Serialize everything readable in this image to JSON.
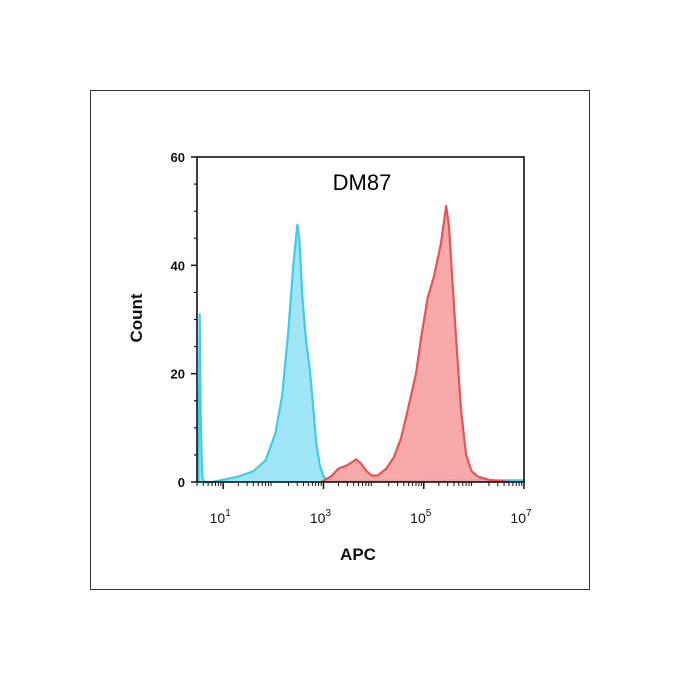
{
  "chart_data": {
    "type": "area",
    "title": "DM87",
    "xlabel": "APC",
    "ylabel": "Count",
    "xscale": "log",
    "xlim": [
      3,
      10000000
    ],
    "ylim": [
      0,
      60
    ],
    "x_ticks": [
      {
        "value": 10,
        "base": "10",
        "exp": "1"
      },
      {
        "value": 1000,
        "base": "10",
        "exp": "3"
      },
      {
        "value": 100000,
        "base": "10",
        "exp": "5"
      },
      {
        "value": 10000000,
        "base": "10",
        "exp": "7"
      }
    ],
    "y_ticks": [
      0,
      20,
      40,
      60
    ],
    "grid": false,
    "legend": "none",
    "series": [
      {
        "color": "#3fcbea",
        "fill": "#8fe1f4",
        "points": [
          [
            3.2,
            0
          ],
          [
            3.4,
            31
          ],
          [
            3.55,
            12
          ],
          [
            3.8,
            1
          ],
          [
            4.2,
            0
          ],
          [
            6,
            0
          ],
          [
            10,
            0.4
          ],
          [
            20,
            1
          ],
          [
            40,
            2
          ],
          [
            70,
            4
          ],
          [
            110,
            9
          ],
          [
            150,
            16
          ],
          [
            200,
            28
          ],
          [
            250,
            40
          ],
          [
            300,
            47.5
          ],
          [
            330,
            45
          ],
          [
            380,
            34
          ],
          [
            450,
            26
          ],
          [
            530,
            21
          ],
          [
            620,
            14
          ],
          [
            720,
            7
          ],
          [
            850,
            3
          ],
          [
            1000,
            1
          ],
          [
            1200,
            0.4
          ],
          [
            2000,
            0.2
          ],
          [
            8000,
            0.2
          ],
          [
            50000,
            0.2
          ],
          [
            1000000,
            0.3
          ],
          [
            10000000,
            0.3
          ]
        ]
      },
      {
        "color": "#e65555",
        "fill": "#f79a9a",
        "points": [
          [
            900,
            0
          ],
          [
            1400,
            1
          ],
          [
            2000,
            2.5
          ],
          [
            2800,
            3
          ],
          [
            3500,
            3.5
          ],
          [
            4500,
            4.2
          ],
          [
            5500,
            3.5
          ],
          [
            7000,
            2.2
          ],
          [
            9000,
            1.2
          ],
          [
            12000,
            1.2
          ],
          [
            18000,
            2.5
          ],
          [
            25000,
            4.5
          ],
          [
            35000,
            8
          ],
          [
            50000,
            14
          ],
          [
            70000,
            20
          ],
          [
            90000,
            27
          ],
          [
            120000,
            34
          ],
          [
            160000,
            38
          ],
          [
            220000,
            44
          ],
          [
            280000,
            51
          ],
          [
            320000,
            47
          ],
          [
            380000,
            36
          ],
          [
            460000,
            24
          ],
          [
            560000,
            13
          ],
          [
            700000,
            5
          ],
          [
            900000,
            2
          ],
          [
            1200000,
            1
          ],
          [
            2000000,
            0.4
          ],
          [
            5000000,
            0
          ]
        ]
      }
    ]
  }
}
